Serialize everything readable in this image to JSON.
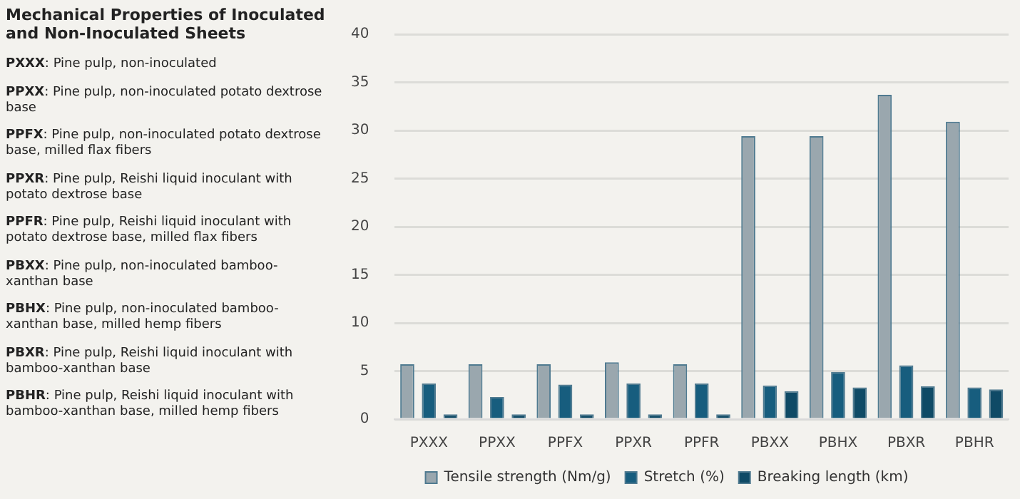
{
  "chart_data": {
    "type": "bar",
    "title": "Mechanical Properties of Inoculated and Non-Inoculated Sheets",
    "categories": [
      "PXXX",
      "PPXX",
      "PPFX",
      "PPXR",
      "PPFR",
      "PBXX",
      "PBHX",
      "PBXR",
      "PBHR"
    ],
    "series": [
      {
        "name": "Tensile strength (Nm/g)",
        "color": "#9aa7ae",
        "values": [
          5.7,
          5.7,
          5.7,
          5.9,
          5.7,
          29.4,
          29.4,
          33.7,
          30.9
        ]
      },
      {
        "name": "Stretch (%)",
        "color": "#175d7e",
        "values": [
          3.7,
          2.3,
          3.6,
          3.7,
          3.7,
          3.5,
          4.9,
          5.6,
          3.3
        ]
      },
      {
        "name": "Breaking length (km)",
        "color": "#0f4a66",
        "values": [
          0.5,
          0.5,
          0.5,
          0.5,
          0.5,
          2.9,
          3.3,
          3.4,
          3.1
        ]
      }
    ],
    "ylim": [
      0,
      40
    ],
    "yticks": [
      0,
      5,
      10,
      15,
      20,
      25,
      30,
      35,
      40
    ],
    "grid": "y",
    "legend": "bottom",
    "annotations": [
      "PXXX: Pine pulp, non-inoculated",
      "PPXX: Pine pulp, non-inoculated potato dextrose base",
      "PPFX: Pine pulp, non-inoculated potato dextrose base, milled flax fibers",
      "PPXR: Pine pulp, Reishi liquid inoculant with potato dextrose base",
      "PPFR: Pine pulp, Reishi liquid inoculant with potato dextrose base, milled flax fibers",
      "PBXX: Pine pulp, non-inoculated bamboo-xanthan base",
      "PBHX: Pine pulp, non-inoculated bamboo-xanthan base, milled hemp fibers",
      "PBXR: Pine pulp, Reishi liquid inoculant with bamboo-xanthan base",
      "PBHR: Pine pulp, Reishi liquid inoculant with bamboo-xanthan base, milled hemp fibers"
    ]
  }
}
